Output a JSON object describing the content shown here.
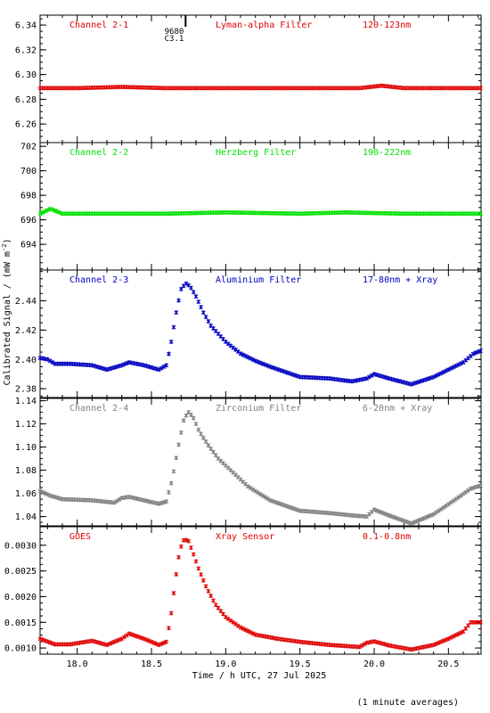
{
  "page": {
    "y_axis_label": "Calibrated Signal / (mW m",
    "y_axis_label_sup": "-2",
    "y_axis_label_end": ")",
    "x_axis_label": "Time / h UTC, 27 Jul 2025",
    "footnote": "(1 minute averages)"
  },
  "flare_marker": {
    "x": 18.73,
    "label_lines": [
      "9680",
      "C3.1"
    ]
  },
  "chart_data": [
    {
      "type": "scatter",
      "panel": "channel-2-1",
      "labels": [
        "Channel 2-1",
        "Lyman-alpha Filter",
        "120-123nm"
      ],
      "color": "#e00000",
      "xlim": [
        17.75,
        20.72
      ],
      "ylim": [
        6.245,
        6.348
      ],
      "yticks": [
        "6.26",
        "6.28",
        "6.30",
        "6.32",
        "6.34"
      ],
      "series": [
        {
          "x": [
            17.75,
            18.0,
            18.3,
            18.6,
            19.0,
            19.5,
            19.9,
            20.05,
            20.2,
            20.72
          ],
          "values": [
            6.289,
            6.289,
            6.29,
            6.289,
            6.289,
            6.289,
            6.289,
            6.291,
            6.289,
            6.289
          ]
        }
      ]
    },
    {
      "type": "scatter",
      "panel": "channel-2-2",
      "labels": [
        "Channel 2-2",
        "Herzberg Filter",
        "190-222nm"
      ],
      "color": "#00e000",
      "xlim": [
        17.75,
        20.72
      ],
      "ylim": [
        691.9,
        702.3
      ],
      "yticks": [
        "694",
        "696",
        "698",
        "700",
        "702"
      ],
      "series": [
        {
          "x": [
            17.75,
            17.82,
            17.9,
            18.2,
            18.6,
            19.0,
            19.5,
            19.8,
            20.2,
            20.72
          ],
          "values": [
            696.5,
            696.9,
            696.5,
            696.5,
            696.5,
            696.6,
            696.5,
            696.6,
            696.5,
            696.5
          ]
        }
      ]
    },
    {
      "type": "scatter",
      "panel": "channel-2-3",
      "labels": [
        "Channel 2-3",
        "Aluminium Filter",
        "17-80nm + Xray"
      ],
      "color": "#0000c0",
      "xlim": [
        17.75,
        20.72
      ],
      "ylim": [
        2.374,
        2.461
      ],
      "yticks": [
        "2.38",
        "2.40",
        "2.42",
        "2.44"
      ],
      "series": [
        {
          "x": [
            17.75,
            17.8,
            17.85,
            17.95,
            18.1,
            18.2,
            18.3,
            18.35,
            18.45,
            18.55,
            18.6,
            18.63,
            18.67,
            18.7,
            18.73,
            18.76,
            18.8,
            18.85,
            18.9,
            19.0,
            19.1,
            19.2,
            19.3,
            19.5,
            19.7,
            19.85,
            19.95,
            20.0,
            20.1,
            20.25,
            20.4,
            20.5,
            20.6,
            20.67,
            20.72
          ],
          "values": [
            2.401,
            2.4,
            2.397,
            2.397,
            2.396,
            2.393,
            2.396,
            2.398,
            2.396,
            2.393,
            2.396,
            2.41,
            2.434,
            2.448,
            2.452,
            2.45,
            2.443,
            2.432,
            2.423,
            2.412,
            2.404,
            2.399,
            2.395,
            2.388,
            2.387,
            2.385,
            2.387,
            2.39,
            2.387,
            2.383,
            2.388,
            2.393,
            2.398,
            2.404,
            2.406
          ]
        }
      ]
    },
    {
      "type": "scatter",
      "panel": "channel-2-4",
      "labels": [
        "Channel 2-4",
        "Zirconium Filter",
        "6-20nm + Xray"
      ],
      "color": "#808080",
      "xlim": [
        17.75,
        20.72
      ],
      "ylim": [
        1.032,
        1.142
      ],
      "yticks": [
        "1.04",
        "1.06",
        "1.08",
        "1.10",
        "1.12",
        "1.14"
      ],
      "series": [
        {
          "x": [
            17.75,
            17.82,
            17.9,
            18.1,
            18.25,
            18.3,
            18.35,
            18.45,
            18.55,
            18.6,
            18.64,
            18.68,
            18.72,
            18.75,
            18.78,
            18.82,
            18.88,
            18.95,
            19.05,
            19.15,
            19.3,
            19.5,
            19.7,
            19.85,
            19.95,
            20.0,
            20.1,
            20.25,
            20.4,
            20.55,
            20.65,
            20.72
          ],
          "values": [
            1.062,
            1.058,
            1.055,
            1.054,
            1.052,
            1.056,
            1.057,
            1.054,
            1.051,
            1.053,
            1.072,
            1.1,
            1.125,
            1.13,
            1.126,
            1.114,
            1.102,
            1.09,
            1.078,
            1.066,
            1.054,
            1.045,
            1.043,
            1.041,
            1.04,
            1.046,
            1.041,
            1.034,
            1.042,
            1.055,
            1.064,
            1.067
          ]
        }
      ]
    },
    {
      "type": "scatter",
      "panel": "goes",
      "labels": [
        "GOES",
        "Xray Sensor",
        "0.1-0.8nm"
      ],
      "color": "#e00000",
      "xlim": [
        17.75,
        20.72
      ],
      "ylim": [
        0.00088,
        0.00336
      ],
      "yticks": [
        "0.0010",
        "0.0015",
        "0.0020",
        "0.0025",
        "0.0030"
      ],
      "xticks": [
        "18.0",
        "18.5",
        "19.0",
        "19.5",
        "20.0",
        "20.5"
      ],
      "series": [
        {
          "x": [
            17.75,
            17.85,
            17.95,
            18.1,
            18.2,
            18.3,
            18.35,
            18.45,
            18.55,
            18.6,
            18.63,
            18.66,
            18.69,
            18.72,
            18.75,
            18.78,
            18.82,
            18.87,
            18.93,
            19.0,
            19.1,
            19.2,
            19.35,
            19.5,
            19.7,
            19.9,
            19.95,
            20.0,
            20.1,
            20.25,
            20.4,
            20.5,
            20.6,
            20.65,
            20.72
          ],
          "values": [
            0.00118,
            0.00107,
            0.00107,
            0.00114,
            0.00106,
            0.00118,
            0.00128,
            0.00118,
            0.00106,
            0.00112,
            0.0016,
            0.0023,
            0.0029,
            0.00312,
            0.00308,
            0.00285,
            0.00252,
            0.00218,
            0.00185,
            0.0016,
            0.0014,
            0.00126,
            0.00118,
            0.00112,
            0.00106,
            0.00102,
            0.0011,
            0.00113,
            0.00105,
            0.00097,
            0.00106,
            0.00118,
            0.00132,
            0.0015,
            0.0015
          ]
        }
      ]
    }
  ]
}
